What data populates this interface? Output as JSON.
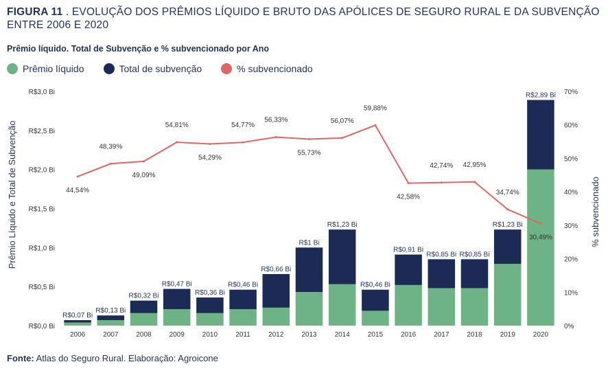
{
  "header": {
    "figure_label": "FIGURA 11",
    "title_text": " . EVOLUÇÃO DOS PRÊMIOS LÍQUIDO E BRUTO DAS APÓLICES DE SEGURO RURAL E DA SUBVENÇÃO ENTRE 2006 E 2020",
    "subtitle": "Prêmio líquido. Total de Subvenção e % subvencionado por Ano"
  },
  "footer": {
    "source_label": "Fonte:",
    "source_text": " Atlas do Seguro Rural. Elaboração: Agroicone"
  },
  "chart_data": {
    "type": "bar",
    "stacked": true,
    "categories": [
      "2006",
      "2007",
      "2008",
      "2009",
      "2010",
      "2011",
      "2012",
      "2013",
      "2014",
      "2015",
      "2016",
      "2017",
      "2018",
      "2019",
      "2020"
    ],
    "series": [
      {
        "name": "Prêmio líquido",
        "color": "#6db386",
        "values": [
          0.04,
          0.07,
          0.16,
          0.21,
          0.16,
          0.21,
          0.23,
          0.43,
          0.53,
          0.19,
          0.52,
          0.48,
          0.48,
          0.79,
          2.0
        ]
      },
      {
        "name": "Total de subvenção",
        "color": "#1c2b55",
        "values": [
          0.03,
          0.06,
          0.16,
          0.26,
          0.2,
          0.25,
          0.43,
          0.57,
          0.7,
          0.27,
          0.39,
          0.37,
          0.37,
          0.44,
          0.89
        ]
      }
    ],
    "total_labels": [
      "R$0,07 Bi",
      "R$0,13 Bi",
      "R$0,32 Bi",
      "R$0,47 Bi",
      "R$0,36 Bi",
      "R$0,46 Bi",
      "R$0,66 Bi",
      "R$1 Bi",
      "R$1,23 Bi",
      "R$0,46 Bi",
      "R$0,91 Bi",
      "R$0,85 Bi",
      "R$0,85 Bi",
      "R$1,23 Bi",
      "R$2,89 Bi"
    ],
    "line_series": {
      "name": "% subvencionado",
      "color": "#e06666",
      "values": [
        44.54,
        48.39,
        49.09,
        54.81,
        54.29,
        54.77,
        56.33,
        55.73,
        56.07,
        59.88,
        42.58,
        42.74,
        42.95,
        34.74,
        30.49
      ]
    },
    "line_labels": [
      "44,54%",
      "48,39%",
      "49,09%",
      "54,81%",
      "54,29%",
      "54,77%",
      "56,33%",
      "55,73%",
      "56,07%",
      "59,88%",
      "42,58%",
      "42,74%",
      "42,95%",
      "34,74%",
      "30,49%"
    ],
    "line_label_pos": [
      "below",
      "above",
      "below",
      "above",
      "below",
      "above",
      "above",
      "below",
      "above",
      "above",
      "below",
      "above",
      "above",
      "above",
      "below"
    ],
    "ylabel": "Prêmio Líquido e Total de Subvenção",
    "y2label": "% subvencionado",
    "ylim": [
      0,
      3.0
    ],
    "y2lim": [
      0,
      70
    ],
    "y_ticks": [
      0,
      0.5,
      1.0,
      1.5,
      2.0,
      2.5,
      3.0
    ],
    "y_tick_labels": [
      "R$0,0 Bi",
      "R$0,5 Bi",
      "R$1,0 Bi",
      "R$1,5 Bi",
      "R$2,0 Bi",
      "R$2,5 Bi",
      "R$3,0 Bi"
    ],
    "y2_ticks": [
      0,
      10,
      20,
      30,
      40,
      50,
      60,
      70
    ],
    "y2_tick_labels": [
      "0%",
      "10%",
      "20%",
      "30%",
      "40%",
      "50%",
      "60%",
      "70%"
    ],
    "legend_position": "top-left",
    "grid": false
  }
}
